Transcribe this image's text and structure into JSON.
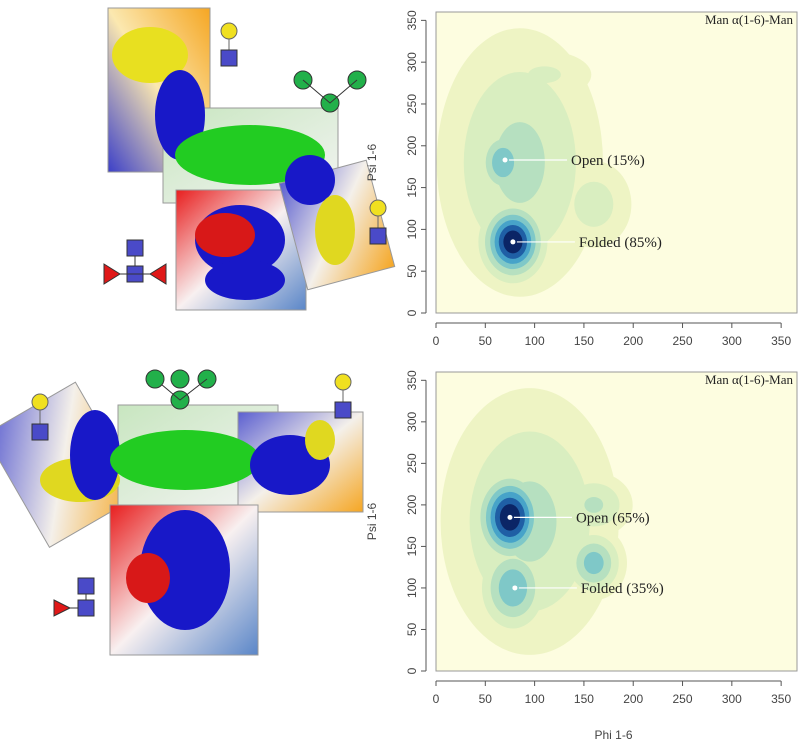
{
  "chart_data": [
    {
      "type": "density",
      "title": "Man α(1-6)-Man",
      "ylabel": "Psi 1-6",
      "xlim": [
        0,
        360
      ],
      "ylim": [
        0,
        360
      ],
      "xticks": [
        0,
        50,
        100,
        150,
        200,
        250,
        300,
        350
      ],
      "yticks": [
        0,
        50,
        100,
        150,
        200,
        250,
        300,
        350
      ],
      "background": "#fdfde0",
      "levels": [
        0.04,
        0.12,
        0.25,
        0.4,
        0.55,
        0.7,
        0.85
      ],
      "level_colors": [
        "#eef4c4",
        "#d9eec0",
        "#b6e0c0",
        "#7fc8c8",
        "#47a3c9",
        "#1f5fa5",
        "#0b2566"
      ],
      "density": [
        {
          "x": 85,
          "y": 180,
          "sx": 42,
          "sy": 80,
          "w": 0.3
        },
        {
          "x": 78,
          "y": 85,
          "sx": 17,
          "sy": 24,
          "w": 1.0
        },
        {
          "x": 68,
          "y": 180,
          "sx": 14,
          "sy": 22,
          "w": 0.55
        },
        {
          "x": 160,
          "y": 130,
          "sx": 22,
          "sy": 30,
          "w": 0.18
        },
        {
          "x": 110,
          "y": 285,
          "sx": 30,
          "sy": 18,
          "w": 0.14
        }
      ],
      "annotations": [
        {
          "x": 70,
          "y": 183,
          "text": "Open (15%)"
        },
        {
          "x": 78,
          "y": 85,
          "text": "Folded (85%)"
        }
      ]
    },
    {
      "type": "density",
      "title": "Man α(1-6)-Man",
      "xlabel": "Phi 1-6",
      "ylabel": "Psi 1-6",
      "xlim": [
        0,
        360
      ],
      "ylim": [
        0,
        360
      ],
      "xticks": [
        0,
        50,
        100,
        150,
        200,
        250,
        300,
        350
      ],
      "yticks": [
        0,
        50,
        100,
        150,
        200,
        250,
        300,
        350
      ],
      "background": "#fdfde0",
      "levels": [
        0.04,
        0.12,
        0.25,
        0.4,
        0.55,
        0.7,
        0.85
      ],
      "level_colors": [
        "#eef4c4",
        "#d9eec0",
        "#b6e0c0",
        "#7fc8c8",
        "#47a3c9",
        "#1f5fa5",
        "#0b2566"
      ],
      "density": [
        {
          "x": 95,
          "y": 180,
          "sx": 45,
          "sy": 80,
          "w": 0.3
        },
        {
          "x": 75,
          "y": 185,
          "sx": 18,
          "sy": 28,
          "w": 1.0
        },
        {
          "x": 78,
          "y": 100,
          "sx": 18,
          "sy": 28,
          "w": 0.55
        },
        {
          "x": 160,
          "y": 130,
          "sx": 15,
          "sy": 20,
          "w": 0.5
        },
        {
          "x": 160,
          "y": 200,
          "sx": 20,
          "sy": 20,
          "w": 0.28
        }
      ],
      "annotations": [
        {
          "x": 75,
          "y": 185,
          "text": "Open (65%)"
        },
        {
          "x": 80,
          "y": 100,
          "text": "Folded (35%)"
        }
      ]
    }
  ]
}
